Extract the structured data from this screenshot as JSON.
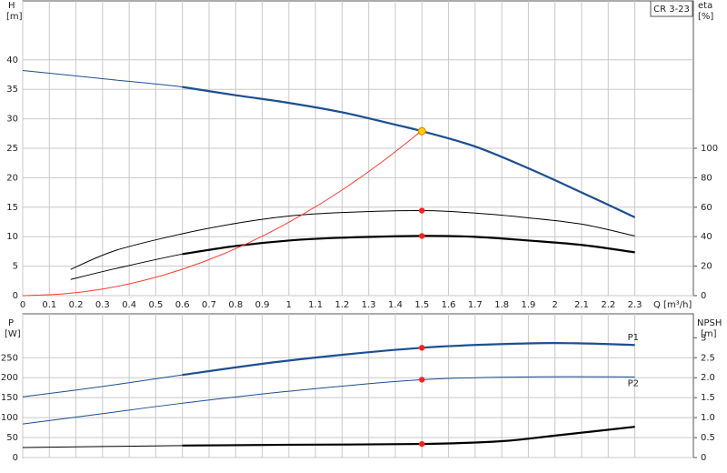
{
  "chart_data": [
    {
      "type": "line",
      "label": "CR 3-23",
      "ylabel": "H",
      "yunit": "[m]",
      "y2label": "eta",
      "y2unit": "[%]",
      "xlabel": "Q [m³/h]",
      "xlim": [
        0,
        2.52
      ],
      "xticks": [
        0,
        0.1,
        0.2,
        0.3,
        0.4,
        0.5,
        0.6,
        0.7,
        0.8,
        0.9,
        1,
        1.1,
        1.2,
        1.3,
        1.4,
        1.5,
        1.6,
        1.7,
        1.8,
        1.9,
        2,
        2.1,
        2.2,
        2.3
      ],
      "ylim": [
        0,
        50
      ],
      "yticks": [
        0,
        5,
        10,
        15,
        20,
        25,
        30,
        35,
        40
      ],
      "y2lim": [
        0,
        200
      ],
      "y2ticks": [
        0,
        20,
        40,
        60,
        80,
        100
      ],
      "grid": true,
      "operating_range": [
        0.6,
        2.3
      ],
      "series": [
        {
          "color": "#1c4f8f",
          "bold": true,
          "x": [
            0,
            0.3,
            0.6,
            0.8,
            1.0,
            1.2,
            1.4,
            1.5,
            1.7,
            1.9,
            2.1,
            2.3
          ],
          "values": [
            38.2,
            36.8,
            35.4,
            34.0,
            32.7,
            31.1,
            29.0,
            27.9,
            25.3,
            21.6,
            17.5,
            13.3
          ]
        },
        {
          "color": "#000000",
          "bold": false,
          "axis": "y2",
          "x": [
            0.18,
            0.35,
            0.6,
            0.8,
            1.0,
            1.2,
            1.5,
            1.7,
            1.9,
            2.1,
            2.3
          ],
          "values": [
            17.8,
            30.7,
            42,
            49,
            54,
            56.4,
            57.7,
            56,
            52.8,
            48.5,
            40.5
          ]
        },
        {
          "color": "#000000",
          "bold": true,
          "axis": "y2",
          "x": [
            0.18,
            0.35,
            0.6,
            0.8,
            1.0,
            1.2,
            1.5,
            1.7,
            1.9,
            2.1,
            2.3
          ],
          "values": [
            11,
            18.4,
            28.2,
            33.7,
            37.4,
            39.3,
            40.5,
            39.9,
            37.4,
            34.4,
            29.4
          ]
        },
        {
          "color": "#ff3b30",
          "bold": false,
          "x": [
            0,
            0.15,
            0.3,
            0.45,
            0.6,
            0.75,
            0.9,
            1.05,
            1.2,
            1.35,
            1.5
          ],
          "values": [
            0,
            0.28,
            1.12,
            2.52,
            4.48,
            7,
            10.08,
            13.72,
            17.92,
            22.68,
            28
          ]
        }
      ],
      "points": [
        {
          "x": 1.5,
          "value": 27.9,
          "color": "#ffcc00"
        },
        {
          "x": 1.5,
          "value": 57.7,
          "axis": "y2",
          "color": "#ff2020"
        },
        {
          "x": 1.5,
          "value": 40.5,
          "axis": "y2",
          "color": "#ff2020"
        }
      ]
    },
    {
      "type": "line",
      "ylabel": "P",
      "yunit": "[W]",
      "y2label": "NPSH",
      "y2unit": "[m]",
      "xlim": [
        0,
        2.52
      ],
      "xticks": [
        0,
        0.1,
        0.2,
        0.3,
        0.4,
        0.5,
        0.6,
        0.7,
        0.8,
        0.9,
        1,
        1.1,
        1.2,
        1.3,
        1.4,
        1.5,
        1.6,
        1.7,
        1.8,
        1.9,
        2,
        2.1,
        2.2,
        2.3
      ],
      "ylim": [
        0,
        360
      ],
      "yticks": [
        0,
        50,
        100,
        150,
        200,
        250
      ],
      "y2lim": [
        0,
        3.6
      ],
      "y2ticks": [
        0,
        0.5,
        {
          "value": 1,
          "label": "1.0"
        },
        1.5,
        {
          "value": 2,
          "label": "2.0"
        },
        2.5,
        3
      ],
      "grid": true,
      "operating_range": [
        0.6,
        2.3
      ],
      "series": [
        {
          "name": "P1",
          "color": "#1c4f8f",
          "bold": true,
          "x": [
            0,
            0.3,
            0.6,
            1.0,
            1.5,
            1.9,
            2.1,
            2.3
          ],
          "values": [
            152,
            178,
            207,
            243,
            275,
            286,
            286,
            282
          ]
        },
        {
          "name": "P2",
          "color": "#1c4f8f",
          "bold": false,
          "x": [
            0,
            0.3,
            0.6,
            1.0,
            1.5,
            1.9,
            2.3
          ],
          "values": [
            84,
            110,
            136,
            166,
            195,
            202,
            202
          ]
        },
        {
          "color": "#000000",
          "bold": true,
          "axis": "y2",
          "x": [
            0,
            0.6,
            1.0,
            1.5,
            1.8,
            2.0,
            2.3
          ],
          "values": [
            0.25,
            0.3,
            0.32,
            0.34,
            0.41,
            0.55,
            0.77
          ]
        }
      ],
      "points": [
        {
          "x": 1.5,
          "value": 275,
          "color": "#ff2020"
        },
        {
          "x": 1.5,
          "value": 195,
          "color": "#ff2020"
        },
        {
          "x": 1.5,
          "value": 0.34,
          "axis": "y2",
          "color": "#ff2020"
        }
      ]
    }
  ]
}
